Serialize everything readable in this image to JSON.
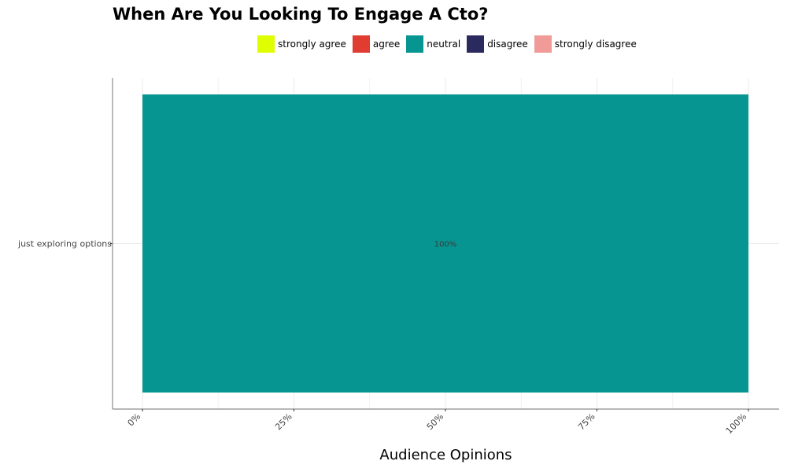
{
  "chart_data": {
    "type": "bar",
    "orientation": "horizontal",
    "stacked": true,
    "title": "When Are You Looking To Engage A Cto?",
    "xlabel": "Audience Opinions",
    "ylabel": "",
    "categories": [
      "just exploring options"
    ],
    "x_ticks": [
      "0%",
      "25%",
      "50%",
      "75%",
      "100%"
    ],
    "xlim": [
      0,
      100
    ],
    "grid": true,
    "legend_position": "top",
    "series": [
      {
        "name": "strongly agree",
        "color": "#DFFF00",
        "values": [
          0
        ]
      },
      {
        "name": "agree",
        "color": "#E03C31",
        "values": [
          0
        ]
      },
      {
        "name": "neutral",
        "color": "#069591",
        "values": [
          100
        ]
      },
      {
        "name": "disagree",
        "color": "#2A2A5E",
        "values": [
          0
        ]
      },
      {
        "name": "strongly disagree",
        "color": "#F09B98",
        "values": [
          0
        ]
      }
    ],
    "data_labels": [
      {
        "category": "just exploring options",
        "series": "neutral",
        "text": "100%"
      }
    ]
  }
}
